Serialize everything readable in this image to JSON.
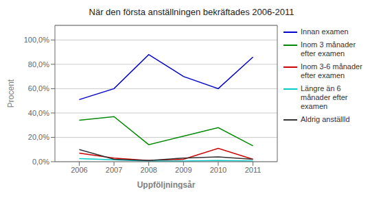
{
  "chart_data": {
    "type": "line",
    "title": "När den första anställningen bekräftades 2006-2011",
    "xlabel": "Uppföljningsår",
    "ylabel": "Procent",
    "x": [
      2006,
      2007,
      2008,
      2009,
      2010,
      2011
    ],
    "series": [
      {
        "name": "Innan examen",
        "color": "#0000CC",
        "values": [
          0.51,
          0.6,
          0.88,
          0.7,
          0.6,
          0.86
        ]
      },
      {
        "name": "Inom 3 månader\nefter examen",
        "color": "#008800",
        "values": [
          0.34,
          0.37,
          0.14,
          0.21,
          0.28,
          0.13
        ]
      },
      {
        "name": "Inom 3-6 månader\nefter examen",
        "color": "#CC0000",
        "values": [
          0.07,
          0.03,
          0.01,
          0.02,
          0.11,
          0.02
        ]
      },
      {
        "name": "Längre än 6\nmånader efter\nexamen",
        "color": "#00CCCC",
        "values": [
          0.025,
          0.015,
          0.005,
          0.005,
          0.01,
          0.005
        ]
      },
      {
        "name": "Aldrig anställld",
        "color": "#333333",
        "values": [
          0.1,
          0.02,
          0.01,
          0.03,
          0.04,
          0.02
        ]
      }
    ],
    "xlim": [
      2005.3,
      2011.7
    ],
    "xticks": [
      2006,
      2007,
      2008,
      2009,
      2010,
      2011
    ],
    "ylim": [
      0,
      1.12
    ],
    "yticks": [
      {
        "value": 0,
        "label": "0,0%"
      },
      {
        "value": 0.2,
        "label": "20,0%"
      },
      {
        "value": 0.4,
        "label": "40,0%"
      },
      {
        "value": 0.6,
        "label": "60,0%"
      },
      {
        "value": 0.8,
        "label": "80,0%"
      },
      {
        "value": 1.0,
        "label": "100,0%"
      }
    ],
    "grid": true,
    "legend": "right"
  }
}
